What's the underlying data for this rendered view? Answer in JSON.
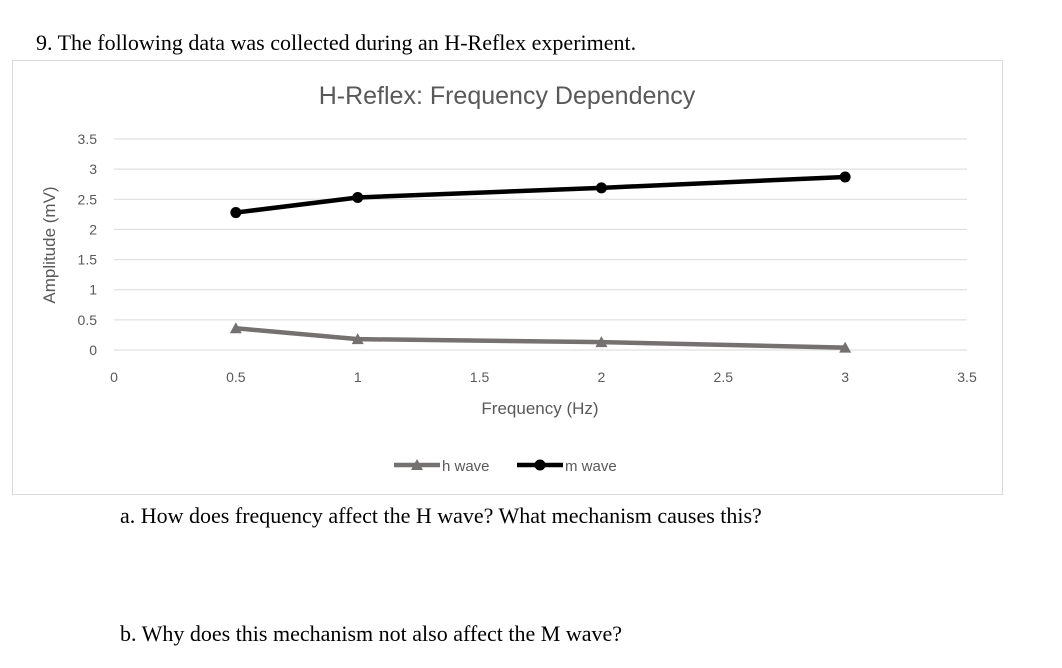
{
  "question": {
    "header": "9.  The following data was collected during an H-Reflex experiment.",
    "part_a": "a.   How does frequency affect the H wave? What mechanism causes this?",
    "part_b": "b.   Why does this mechanism not also affect the M wave?"
  },
  "chart_data": {
    "type": "line",
    "title": "H-Reflex: Frequency Dependency",
    "xlabel": "Frequency (Hz)",
    "ylabel": "Amplitude (mV)",
    "xlim": [
      0,
      3.5
    ],
    "ylim": [
      0,
      3.5
    ],
    "xticks": [
      "0",
      "0.5",
      "1",
      "1.5",
      "2",
      "2.5",
      "3",
      "3.5"
    ],
    "yticks": [
      "0",
      "0.5",
      "1",
      "1.5",
      "2",
      "2.5",
      "3",
      "3.5"
    ],
    "grid": true,
    "legend": "bottom",
    "x": [
      0.5,
      1,
      2,
      3
    ],
    "series": [
      {
        "name": "h wave",
        "values": [
          0.36,
          0.18,
          0.13,
          0.04
        ],
        "color": "#767171",
        "marker": "triangle"
      },
      {
        "name": "m wave",
        "values": [
          2.28,
          2.53,
          2.69,
          2.87
        ],
        "color": "#000000",
        "marker": "circle"
      }
    ]
  }
}
